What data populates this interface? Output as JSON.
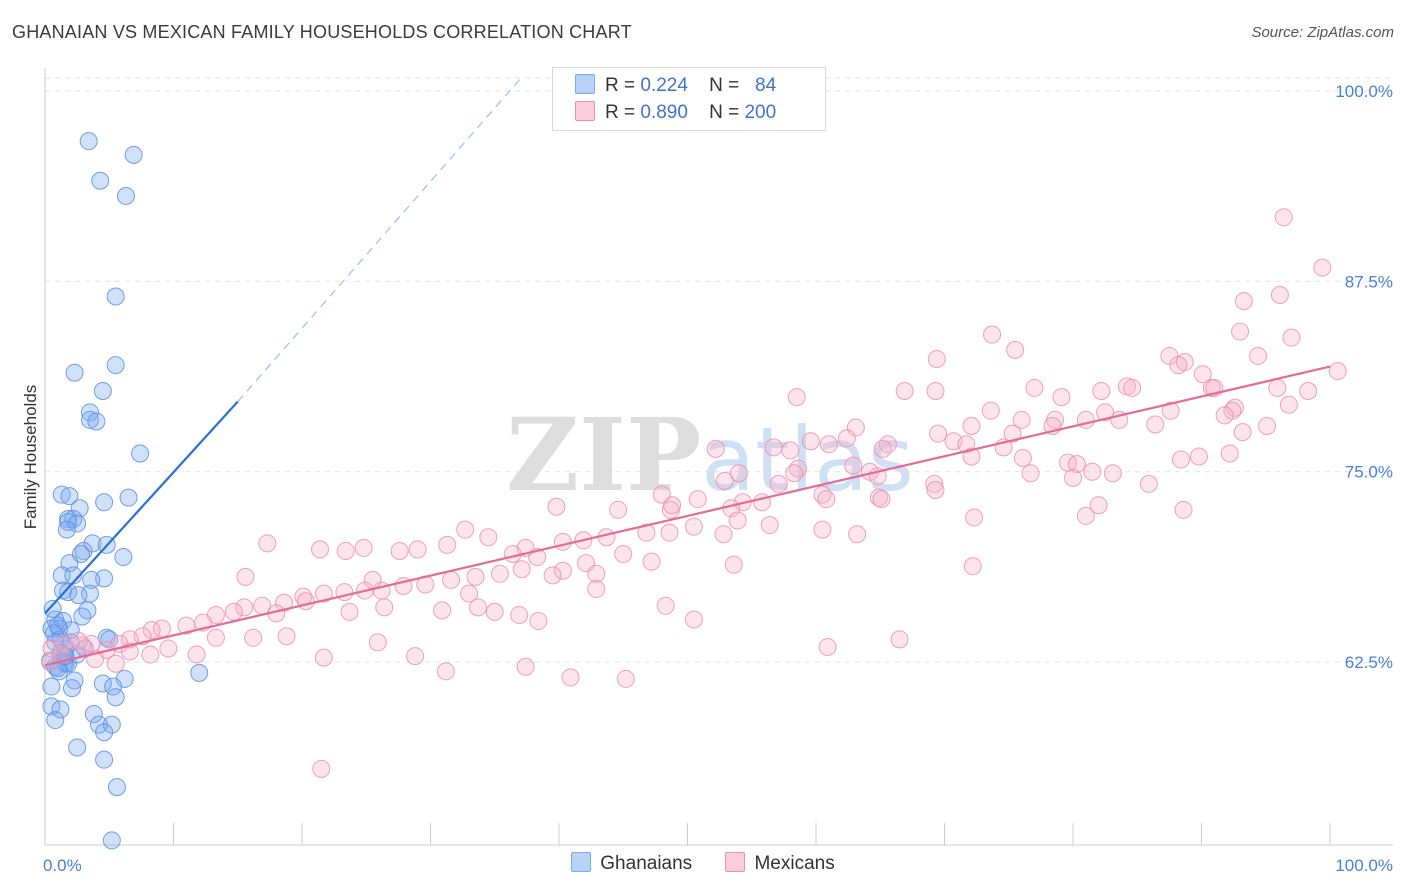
{
  "title": "GHANAIAN VS MEXICAN FAMILY HOUSEHOLDS CORRELATION CHART",
  "source": "Source: ZipAtlas.com",
  "watermark": "ZIPatlas",
  "legend_top": {
    "rows": [
      {
        "r_label": "R =",
        "r_value": "0.224",
        "n_label": "N =",
        "n_value": "84",
        "color": "#9cc0f0"
      },
      {
        "r_label": "R =",
        "r_value": "0.890",
        "n_label": "N =",
        "n_value": "200",
        "color": "#f5b3c8"
      }
    ]
  },
  "legend_bottom": {
    "items": [
      {
        "label": "Ghanaians",
        "color": "#9cc0f0"
      },
      {
        "label": "Mexicans",
        "color": "#f5b3c8"
      }
    ]
  },
  "chart_data": {
    "type": "scatter",
    "title": "GHANAIAN VS MEXICAN FAMILY HOUSEHOLDS CORRELATION CHART",
    "xlabel": "",
    "ylabel": "Family Households",
    "xlim": [
      0,
      100
    ],
    "ylim": [
      50.5,
      101.5
    ],
    "x_tick_labels": [
      "0.0%",
      "100.0%"
    ],
    "y_ticks": [
      62.5,
      75.0,
      87.5,
      100.0
    ],
    "y_tick_labels": [
      "62.5%",
      "75.0%",
      "87.5%",
      "100.0%"
    ],
    "grid": true,
    "series": [
      {
        "name": "Ghanaians",
        "color": "#7aaaf0",
        "stroke": "#5b8fe0",
        "trend": {
          "x": [
            0,
            15
          ],
          "y": [
            65.7,
            79.6
          ]
        },
        "trend_dashed": {
          "x": [
            15,
            37
          ],
          "y": [
            79.6,
            100.8
          ]
        },
        "points": [
          [
            3.4,
            96.7
          ],
          [
            6.9,
            95.8
          ],
          [
            4.3,
            94.1
          ],
          [
            6.3,
            93.1
          ],
          [
            5.5,
            86.5
          ],
          [
            5.5,
            82.0
          ],
          [
            2.3,
            81.5
          ],
          [
            4.5,
            80.3
          ],
          [
            3.5,
            78.9
          ],
          [
            3.5,
            78.4
          ],
          [
            4.0,
            78.3
          ],
          [
            7.4,
            76.2
          ],
          [
            1.3,
            73.5
          ],
          [
            1.9,
            73.4
          ],
          [
            6.5,
            73.3
          ],
          [
            4.6,
            73.0
          ],
          [
            2.7,
            72.6
          ],
          [
            1.8,
            71.9
          ],
          [
            2.2,
            71.9
          ],
          [
            1.8,
            71.7
          ],
          [
            2.5,
            71.6
          ],
          [
            1.7,
            71.2
          ],
          [
            3.7,
            70.3
          ],
          [
            4.8,
            70.2
          ],
          [
            3.0,
            69.8
          ],
          [
            2.8,
            69.6
          ],
          [
            6.1,
            69.4
          ],
          [
            1.9,
            69.0
          ],
          [
            1.3,
            68.2
          ],
          [
            2.2,
            68.2
          ],
          [
            4.6,
            68.0
          ],
          [
            3.6,
            67.9
          ],
          [
            1.4,
            67.2
          ],
          [
            1.8,
            67.1
          ],
          [
            3.5,
            67.0
          ],
          [
            2.6,
            66.9
          ],
          [
            3.3,
            65.9
          ],
          [
            2.9,
            65.5
          ],
          [
            0.8,
            65.3
          ],
          [
            1.4,
            65.2
          ],
          [
            1.1,
            64.7
          ],
          [
            0.5,
            64.7
          ],
          [
            0.7,
            64.4
          ],
          [
            1.2,
            64.0
          ],
          [
            4.8,
            64.1
          ],
          [
            5.0,
            64.0
          ],
          [
            0.8,
            63.8
          ],
          [
            2.0,
            63.8
          ],
          [
            1.6,
            63.4
          ],
          [
            1.2,
            63.1
          ],
          [
            1.3,
            63.0
          ],
          [
            2.5,
            63.0
          ],
          [
            1.5,
            62.9
          ],
          [
            1.8,
            62.4
          ],
          [
            0.4,
            62.6
          ],
          [
            1.5,
            62.5
          ],
          [
            1.6,
            62.4
          ],
          [
            0.8,
            62.2
          ],
          [
            1.0,
            62.1
          ],
          [
            1.1,
            61.9
          ],
          [
            12.0,
            61.8
          ],
          [
            6.2,
            61.4
          ],
          [
            2.3,
            61.3
          ],
          [
            4.5,
            61.1
          ],
          [
            0.5,
            60.9
          ],
          [
            5.3,
            60.9
          ],
          [
            2.1,
            60.8
          ],
          [
            5.5,
            60.2
          ],
          [
            0.5,
            59.6
          ],
          [
            1.2,
            59.4
          ],
          [
            3.8,
            59.1
          ],
          [
            0.8,
            58.7
          ],
          [
            4.2,
            58.4
          ],
          [
            5.2,
            58.4
          ],
          [
            4.6,
            57.9
          ],
          [
            2.5,
            56.9
          ],
          [
            4.6,
            56.1
          ],
          [
            5.6,
            54.3
          ],
          [
            5.2,
            50.8
          ],
          [
            1.0,
            64.9
          ],
          [
            2.0,
            64.6
          ],
          [
            0.6,
            66.0
          ],
          [
            3.1,
            63.4
          ],
          [
            1.6,
            62.9
          ]
        ]
      },
      {
        "name": "Mexicans",
        "color": "#f5b3c8",
        "stroke": "#ec8fae",
        "trend": {
          "x": [
            0,
            100
          ],
          "y": [
            62.3,
            81.9
          ]
        },
        "points": [
          [
            96.4,
            91.7
          ],
          [
            99.4,
            88.4
          ],
          [
            96.1,
            86.6
          ],
          [
            93.3,
            86.2
          ],
          [
            93.0,
            84.2
          ],
          [
            97.0,
            83.8
          ],
          [
            75.5,
            83.0
          ],
          [
            94.4,
            82.6
          ],
          [
            87.5,
            82.6
          ],
          [
            69.4,
            82.4
          ],
          [
            88.7,
            82.2
          ],
          [
            88.2,
            82.0
          ],
          [
            100.6,
            81.6
          ],
          [
            90.1,
            81.4
          ],
          [
            84.2,
            80.6
          ],
          [
            84.6,
            80.5
          ],
          [
            90.8,
            80.5
          ],
          [
            91.0,
            80.5
          ],
          [
            69.3,
            80.3
          ],
          [
            82.2,
            80.3
          ],
          [
            98.3,
            80.3
          ],
          [
            95.9,
            80.5
          ],
          [
            77.0,
            80.5
          ],
          [
            66.9,
            80.3
          ],
          [
            58.5,
            79.9
          ],
          [
            79.1,
            79.9
          ],
          [
            92.6,
            79.2
          ],
          [
            92.4,
            79.0
          ],
          [
            73.6,
            79.0
          ],
          [
            96.8,
            79.4
          ],
          [
            78.6,
            78.4
          ],
          [
            83.6,
            78.4
          ],
          [
            87.6,
            79.0
          ],
          [
            82.5,
            78.9
          ],
          [
            81.0,
            78.4
          ],
          [
            86.4,
            78.1
          ],
          [
            95.1,
            78.0
          ],
          [
            91.8,
            78.7
          ],
          [
            76.0,
            78.4
          ],
          [
            78.4,
            78.0
          ],
          [
            72.1,
            78.0
          ],
          [
            93.2,
            77.6
          ],
          [
            63.1,
            77.9
          ],
          [
            69.5,
            77.5
          ],
          [
            75.3,
            77.5
          ],
          [
            62.4,
            77.2
          ],
          [
            59.6,
            77.0
          ],
          [
            70.7,
            77.0
          ],
          [
            65.6,
            76.8
          ],
          [
            61.0,
            76.8
          ],
          [
            71.7,
            76.8
          ],
          [
            65.2,
            76.5
          ],
          [
            74.6,
            76.6
          ],
          [
            56.7,
            76.6
          ],
          [
            52.2,
            76.5
          ],
          [
            58.0,
            76.4
          ],
          [
            92.2,
            76.2
          ],
          [
            89.8,
            76.0
          ],
          [
            72.1,
            76.0
          ],
          [
            76.1,
            75.9
          ],
          [
            88.4,
            75.8
          ],
          [
            79.6,
            75.6
          ],
          [
            80.3,
            75.5
          ],
          [
            62.9,
            75.4
          ],
          [
            58.6,
            75.2
          ],
          [
            64.2,
            75.0
          ],
          [
            83.1,
            74.9
          ],
          [
            81.5,
            75.0
          ],
          [
            76.7,
            74.9
          ],
          [
            54.0,
            74.9
          ],
          [
            58.3,
            74.9
          ],
          [
            64.8,
            74.7
          ],
          [
            80.0,
            74.6
          ],
          [
            69.2,
            74.2
          ],
          [
            57.1,
            74.2
          ],
          [
            52.9,
            74.4
          ],
          [
            69.3,
            73.8
          ],
          [
            60.5,
            73.5
          ],
          [
            64.9,
            73.3
          ],
          [
            50.8,
            73.2
          ],
          [
            48.0,
            73.5
          ],
          [
            60.8,
            73.2
          ],
          [
            65.1,
            73.2
          ],
          [
            54.3,
            73.0
          ],
          [
            55.8,
            73.0
          ],
          [
            53.4,
            72.6
          ],
          [
            48.7,
            72.5
          ],
          [
            48.8,
            72.8
          ],
          [
            44.6,
            72.5
          ],
          [
            39.8,
            72.7
          ],
          [
            82.0,
            72.8
          ],
          [
            88.6,
            72.5
          ],
          [
            81.0,
            72.1
          ],
          [
            72.3,
            72.0
          ],
          [
            53.9,
            71.8
          ],
          [
            56.4,
            71.5
          ],
          [
            60.5,
            71.2
          ],
          [
            63.2,
            70.9
          ],
          [
            52.8,
            70.9
          ],
          [
            50.5,
            71.4
          ],
          [
            48.6,
            71.0
          ],
          [
            46.8,
            71.0
          ],
          [
            43.7,
            70.7
          ],
          [
            41.9,
            70.5
          ],
          [
            40.3,
            70.4
          ],
          [
            37.4,
            70.0
          ],
          [
            32.7,
            71.2
          ],
          [
            34.5,
            70.7
          ],
          [
            31.3,
            70.2
          ],
          [
            29.0,
            69.9
          ],
          [
            27.6,
            69.8
          ],
          [
            24.8,
            70.0
          ],
          [
            23.4,
            69.8
          ],
          [
            21.4,
            69.9
          ],
          [
            17.3,
            70.3
          ],
          [
            38.3,
            69.4
          ],
          [
            36.4,
            69.6
          ],
          [
            42.1,
            69.0
          ],
          [
            47.2,
            69.1
          ],
          [
            45.0,
            69.6
          ],
          [
            42.9,
            68.3
          ],
          [
            40.3,
            68.5
          ],
          [
            39.5,
            68.2
          ],
          [
            37.1,
            68.6
          ],
          [
            35.4,
            68.3
          ],
          [
            33.5,
            68.1
          ],
          [
            31.6,
            67.9
          ],
          [
            29.6,
            67.6
          ],
          [
            27.9,
            67.5
          ],
          [
            26.2,
            67.2
          ],
          [
            24.9,
            67.2
          ],
          [
            23.3,
            67.1
          ],
          [
            21.7,
            67.0
          ],
          [
            20.1,
            66.8
          ],
          [
            18.6,
            66.4
          ],
          [
            16.9,
            66.2
          ],
          [
            15.5,
            66.1
          ],
          [
            14.7,
            65.8
          ],
          [
            13.3,
            65.6
          ],
          [
            12.3,
            65.1
          ],
          [
            11.0,
            64.9
          ],
          [
            9.1,
            64.7
          ],
          [
            8.3,
            64.6
          ],
          [
            7.6,
            64.2
          ],
          [
            6.6,
            64.0
          ],
          [
            5.8,
            63.7
          ],
          [
            4.8,
            63.3
          ],
          [
            3.6,
            63.7
          ],
          [
            2.9,
            63.6
          ],
          [
            1.3,
            63.0
          ],
          [
            0.4,
            62.5
          ],
          [
            0.5,
            63.4
          ],
          [
            1.5,
            63.7
          ],
          [
            2.6,
            63.9
          ],
          [
            3.9,
            62.7
          ],
          [
            5.5,
            62.4
          ],
          [
            6.6,
            63.2
          ],
          [
            8.2,
            63.0
          ],
          [
            9.6,
            63.4
          ],
          [
            11.8,
            63.0
          ],
          [
            13.3,
            64.1
          ],
          [
            16.2,
            64.1
          ],
          [
            18.8,
            64.2
          ],
          [
            21.7,
            62.8
          ],
          [
            25.9,
            63.8
          ],
          [
            28.8,
            62.9
          ],
          [
            31.2,
            61.9
          ],
          [
            33.7,
            66.1
          ],
          [
            35.0,
            65.8
          ],
          [
            36.9,
            65.6
          ],
          [
            38.4,
            65.2
          ],
          [
            30.9,
            65.9
          ],
          [
            26.4,
            66.1
          ],
          [
            20.3,
            66.5
          ],
          [
            18.0,
            65.7
          ],
          [
            23.7,
            65.8
          ],
          [
            37.4,
            62.2
          ],
          [
            40.9,
            61.5
          ],
          [
            45.2,
            61.4
          ],
          [
            48.3,
            66.2
          ],
          [
            50.5,
            65.3
          ],
          [
            53.6,
            68.9
          ],
          [
            66.5,
            64.0
          ],
          [
            60.9,
            63.5
          ],
          [
            72.2,
            68.8
          ],
          [
            85.9,
            74.2
          ],
          [
            73.7,
            84.0
          ],
          [
            21.5,
            55.5
          ],
          [
            15.6,
            68.1
          ],
          [
            25.5,
            67.9
          ],
          [
            33.0,
            67.0
          ],
          [
            42.9,
            67.3
          ]
        ]
      }
    ]
  }
}
